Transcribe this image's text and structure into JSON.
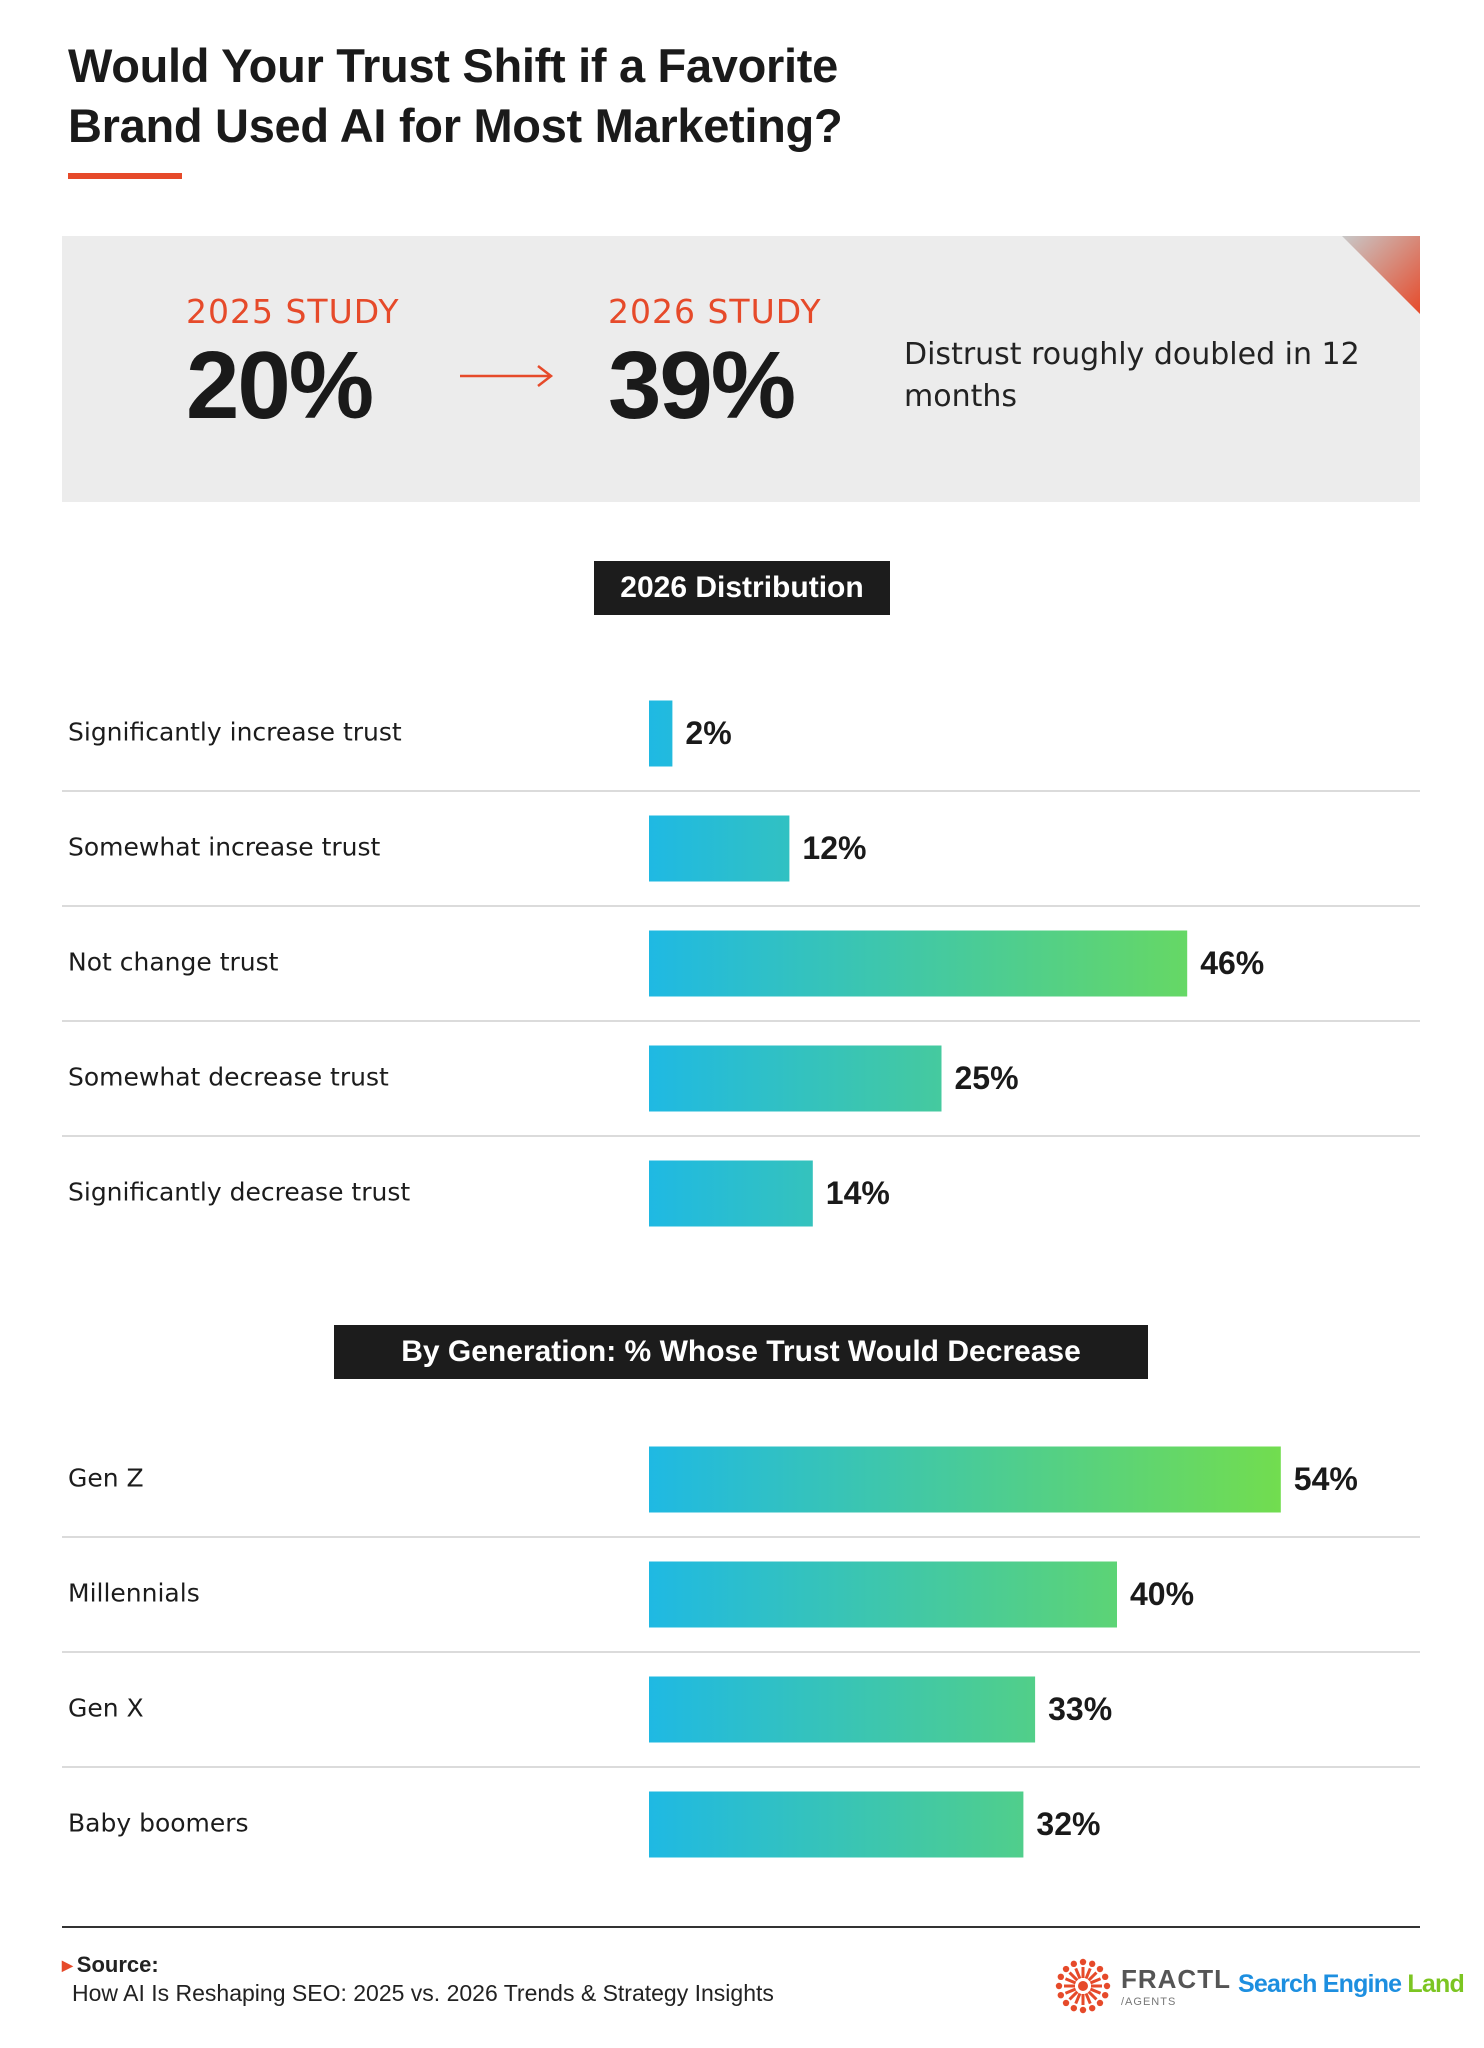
{
  "title": "Would Your Trust Shift if a Favorite Brand Used AI for Most Marketing?",
  "colors": {
    "accent": "#e64a2a",
    "bar_start": "#1fb9e3",
    "bar_end": "#72dd4f",
    "header_bg": "#1c1c1c",
    "panel_bg": "#ececec"
  },
  "hero": {
    "study_2025_label": "2025 STUDY",
    "study_2025_value": "20%",
    "study_2026_label": "2026 STUDY",
    "study_2026_value": "39%",
    "note": "Distrust roughly doubled in 12 months",
    "arrow_icon": "arrow-right-icon"
  },
  "chart_data": [
    {
      "type": "bar",
      "orientation": "horizontal",
      "title": "2026 Distribution",
      "categories": [
        "Significantly increase trust",
        "Somewhat increase trust",
        "Not change trust",
        "Somewhat decrease trust",
        "Significantly decrease trust"
      ],
      "values": [
        2,
        12,
        46,
        25,
        14
      ],
      "value_labels": [
        "2%",
        "12%",
        "46%",
        "25%",
        "14%"
      ],
      "unit": "%"
    },
    {
      "type": "bar",
      "orientation": "horizontal",
      "title": "By Generation: % Whose Trust Would Decrease",
      "categories": [
        "Gen Z",
        "Millennials",
        "Gen X",
        "Baby boomers"
      ],
      "values": [
        54,
        40,
        33,
        32
      ],
      "value_labels": [
        "54%",
        "40%",
        "33%",
        "32%"
      ],
      "unit": "%"
    }
  ],
  "footer": {
    "source_label": "Source:",
    "source_text": "How AI Is Reshaping SEO: 2025 vs. 2026 Trends & Strategy Insights",
    "logo_fractl": "FRACTL",
    "logo_fractl_sub": "/AGENTS",
    "logo_sel_part1": "Search Engine ",
    "logo_sel_part2": "Land"
  }
}
